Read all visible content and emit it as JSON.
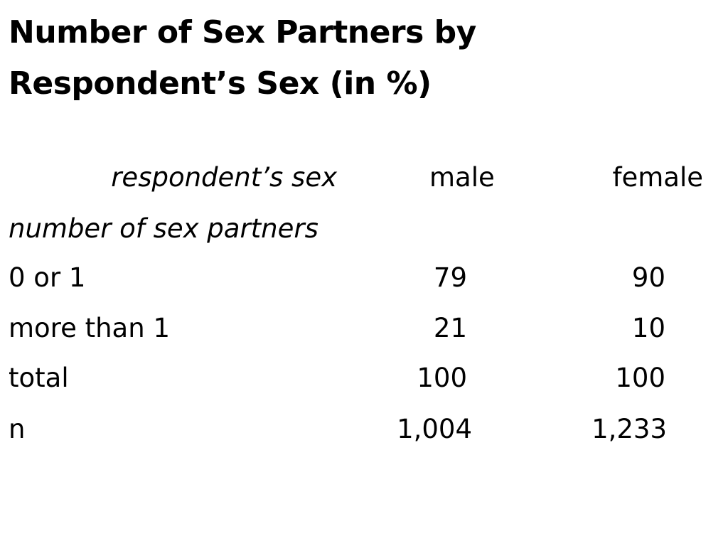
{
  "title": {
    "line1": "Number of Sex Partners by",
    "line2": "Respondent’s Sex (in %)"
  },
  "table": {
    "column_group_label": "respondent’s sex",
    "columns": [
      "male",
      "female"
    ],
    "row_group_label": "number of sex partners",
    "rows": [
      {
        "label": "0 or 1",
        "male": "79",
        "female": "90"
      },
      {
        "label": "more than 1",
        "male": "21",
        "female": "10"
      },
      {
        "label": "total",
        "male": "100",
        "female": "100"
      },
      {
        "label": "n",
        "male": "1,004",
        "female": "1,233"
      }
    ]
  }
}
